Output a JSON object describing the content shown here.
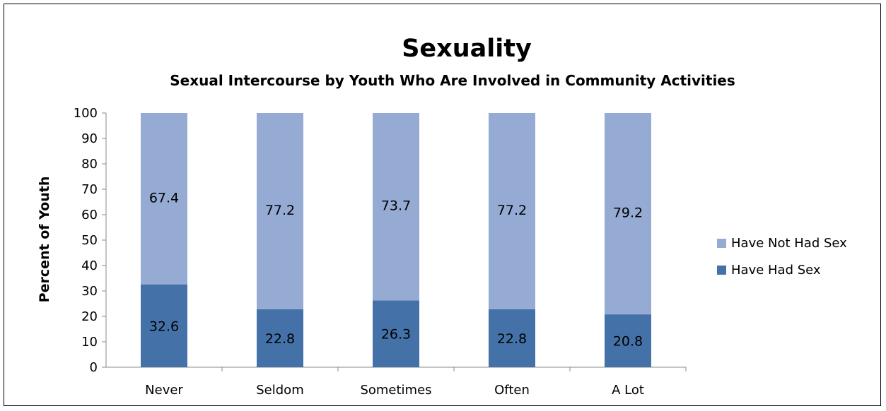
{
  "chart_data": {
    "type": "bar",
    "stacked": true,
    "title": "Sexuality",
    "subtitle": "Sexual Intercourse by Youth Who Are Involved in Community Activities",
    "xlabel": "",
    "ylabel": "Percent of Youth",
    "ylim": [
      0,
      100
    ],
    "yticks": [
      0,
      10,
      20,
      30,
      40,
      50,
      60,
      70,
      80,
      90,
      100
    ],
    "categories": [
      "Never",
      "Seldom",
      "Sometimes",
      "Often",
      "A Lot"
    ],
    "series": [
      {
        "name": "Have Had Sex",
        "values": [
          32.6,
          22.8,
          26.3,
          22.8,
          20.8
        ],
        "color": "#4472a8"
      },
      {
        "name": "Have Not Had Sex",
        "values": [
          67.4,
          77.2,
          73.7,
          77.2,
          79.2
        ],
        "color": "#95abd3"
      }
    ],
    "legend_position": "right",
    "legend_order": [
      "Have Not Had Sex",
      "Have Had Sex"
    ],
    "grid": false
  }
}
